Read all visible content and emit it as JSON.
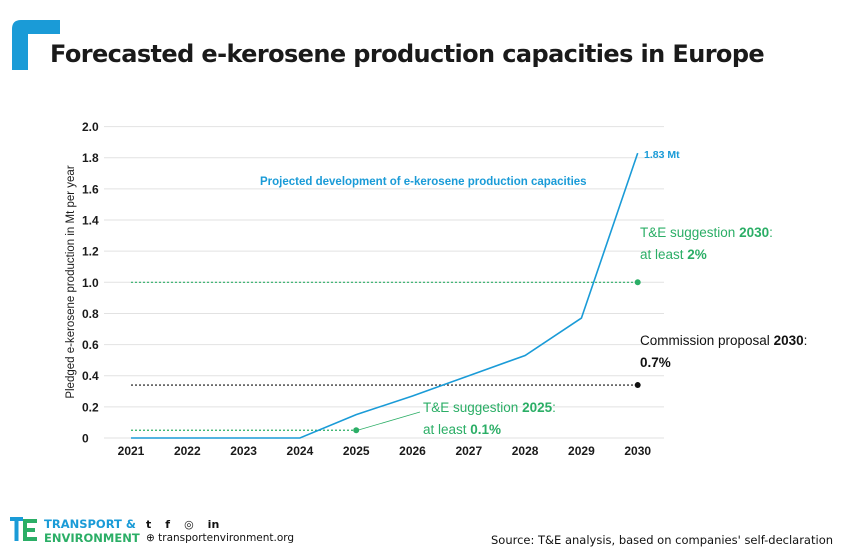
{
  "title": "Forecasted e-kerosene production capacities in Europe",
  "colors": {
    "accent": "#1a9bd7",
    "green": "#2bae66",
    "black": "#111111",
    "grid": "#e2e2e2"
  },
  "chart_data": {
    "type": "line",
    "ylabel": "Pledged e-kerosene production in Mt per year",
    "ylim": [
      0,
      2.0
    ],
    "y_ticks": [
      "0",
      "0.2",
      "0.4",
      "0.6",
      "0.8",
      "1.0",
      "1.2",
      "1.4",
      "1.6",
      "1.8",
      "2.0"
    ],
    "x": [
      "2021",
      "2022",
      "2023",
      "2024",
      "2025",
      "2026",
      "2027",
      "2028",
      "2029",
      "2030"
    ],
    "series": [
      {
        "values": [
          0.0,
          0.0,
          0.0,
          0.0,
          0.15,
          0.27,
          0.4,
          0.53,
          0.77,
          1.83
        ],
        "color": "#1a9bd7"
      }
    ],
    "series_label": "Projected development of e-kerosene production capacities",
    "end_label": "1.83 Mt",
    "reference_lines": [
      {
        "y": 0.05,
        "from": "2021",
        "to": "2025",
        "color": "#2bae66"
      },
      {
        "y": 0.34,
        "from": "2021",
        "to": "2030",
        "color": "#111111"
      },
      {
        "y": 1.0,
        "from": "2021",
        "to": "2030",
        "color": "#2bae66"
      }
    ],
    "annotations": {
      "te2030": {
        "line1_pre": "T&E suggestion ",
        "line1_bold": "2030",
        "line1_post": ":",
        "line2_pre": "at least ",
        "line2_bold": "2%"
      },
      "commission": {
        "line1_pre": "Commission proposal ",
        "line1_bold": "2030",
        "line1_post": ":",
        "line2_bold": "0.7%"
      },
      "te2025": {
        "line1_pre": "T&E suggestion ",
        "line1_bold": "2025",
        "line1_post": ":",
        "line2_pre": "at least ",
        "line2_bold": "0.1%"
      }
    }
  },
  "footer": {
    "brand_line1": "TRANSPORT &",
    "brand_line2": "ENVIRONMENT",
    "social": {
      "twitter": "t",
      "facebook": "f",
      "instagram": "◎",
      "linkedin": "in"
    },
    "website": "⊕ transportenvironment.org",
    "source": "Source: T&E analysis, based on companies' self-declaration"
  }
}
